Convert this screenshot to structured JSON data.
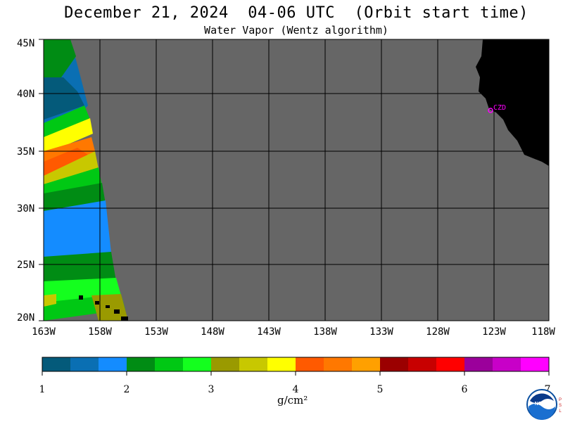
{
  "header": {
    "title": "December 21, 2024  04-06 UTC  (Orbit start time)",
    "subtitle": "Water Vapor (Wentz algorithm)"
  },
  "map": {
    "lat_labels": [
      "45N",
      "40N",
      "35N",
      "30N",
      "25N",
      "20N"
    ],
    "lon_labels": [
      "163W",
      "158W",
      "153W",
      "148W",
      "143W",
      "138W",
      "133W",
      "128W",
      "123W",
      "118W"
    ],
    "station_label": "CZD",
    "background_color": "#666666",
    "land_color": "#000000",
    "station_color": "#ff00ff"
  },
  "colorbar": {
    "colors": [
      "#045a7a",
      "#0a6fb3",
      "#148cff",
      "#008c14",
      "#00c814",
      "#14ff1e",
      "#9a9a00",
      "#c8c800",
      "#ffff00",
      "#ff5a00",
      "#ff7800",
      "#ffa000",
      "#9b0000",
      "#c80000",
      "#ff0000",
      "#9b009b",
      "#c800c8",
      "#ff00ff"
    ],
    "tick_labels": [
      "1",
      "2",
      "3",
      "4",
      "5",
      "6",
      "7"
    ],
    "unit": "g/cm²"
  },
  "logo": {
    "text": "NOAA",
    "side_text": "PSL"
  }
}
